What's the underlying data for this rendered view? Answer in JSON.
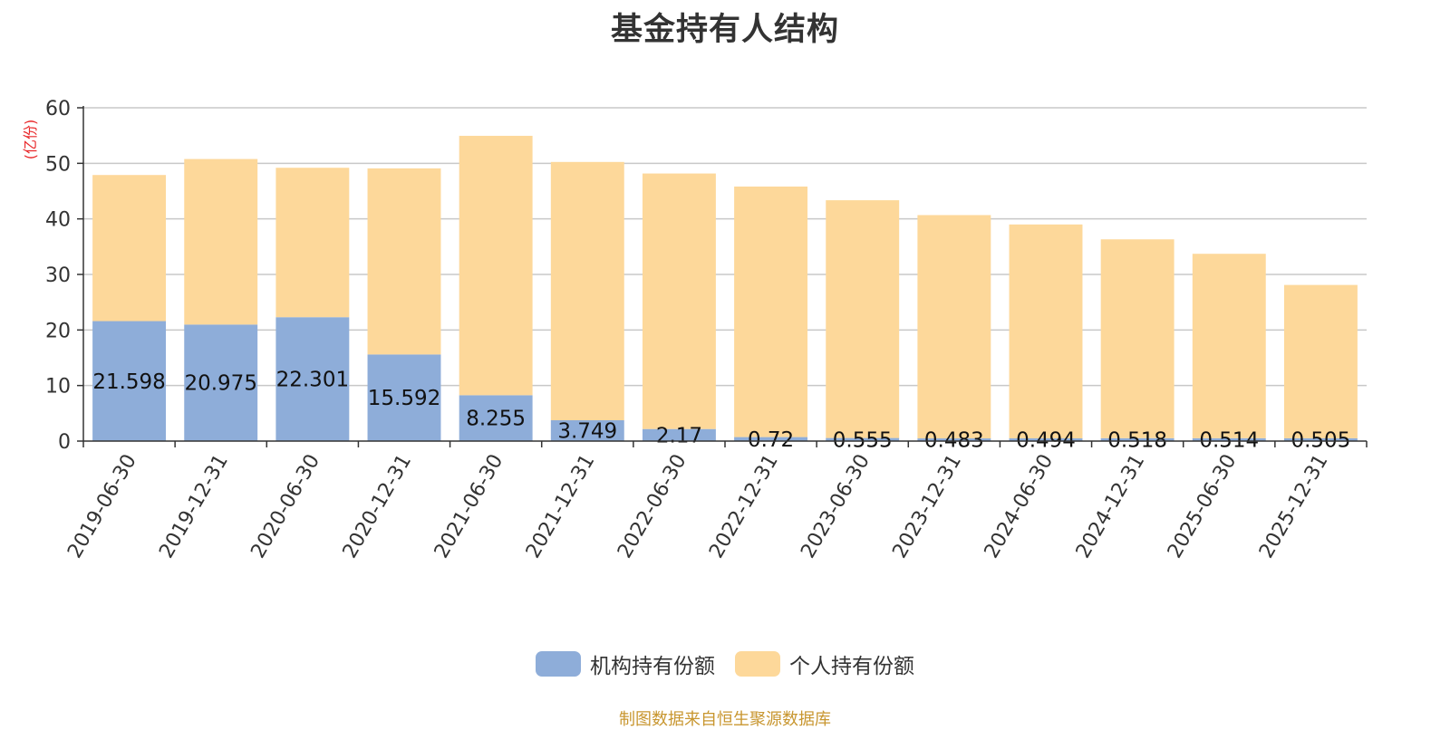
{
  "chart_data": {
    "type": "bar",
    "stacked": true,
    "title": "基金持有人结构",
    "unit_label": "(亿份)",
    "categories": [
      "2019-06-30",
      "2019-12-31",
      "2020-06-30",
      "2020-12-31",
      "2021-06-30",
      "2021-12-31",
      "2022-06-30",
      "2022-12-31",
      "2023-06-30",
      "2023-12-31",
      "2024-06-30",
      "2024-12-31",
      "2025-06-30",
      "2025-12-31"
    ],
    "ylim": [
      0,
      60
    ],
    "yticks": [
      0,
      10,
      20,
      30,
      40,
      50,
      60
    ],
    "grid": true,
    "legend_position": "bottom",
    "series": [
      {
        "name": "机构持有份额",
        "color": "#8eadd9",
        "values": [
          21.598,
          20.975,
          22.301,
          15.592,
          8.255,
          3.749,
          2.17,
          0.72,
          0.555,
          0.483,
          0.494,
          0.518,
          0.514,
          0.505
        ],
        "labels": [
          "21.598",
          "20.975",
          "22.301",
          "15.592",
          "8.255",
          "3.749",
          "2.17",
          "0.72",
          "0.555",
          "0.483",
          "0.494",
          "0.518",
          "0.514",
          "0.505"
        ]
      },
      {
        "name": "个人持有份额",
        "color": "#fdd89a",
        "values": [
          26.3,
          29.8,
          26.9,
          33.5,
          46.7,
          46.5,
          46.0,
          45.1,
          42.8,
          40.2,
          38.5,
          35.8,
          33.2,
          27.6
        ]
      }
    ]
  },
  "source_note": "制图数据来自恒生聚源数据库"
}
